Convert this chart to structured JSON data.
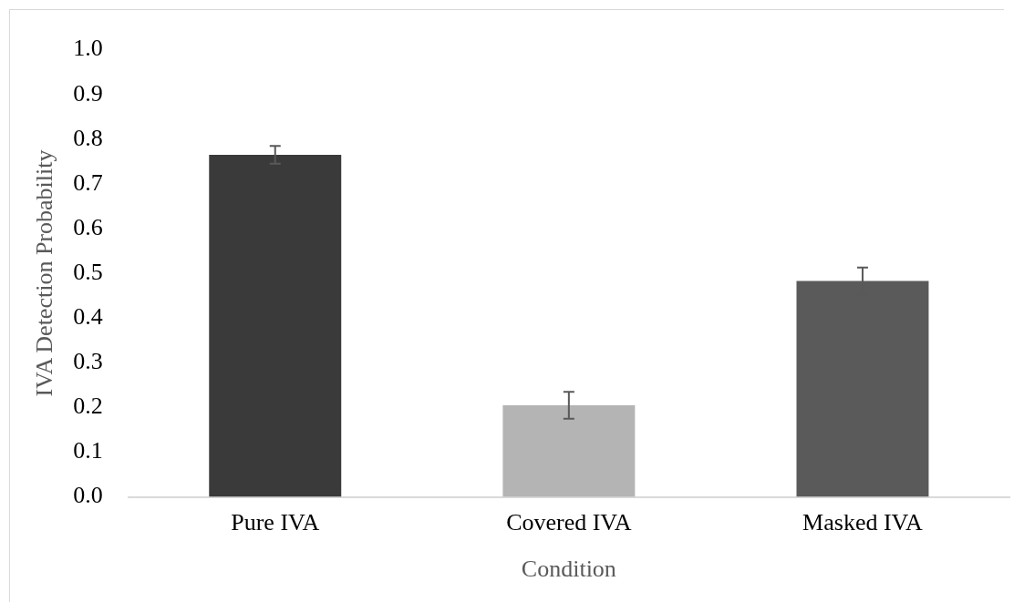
{
  "chart_data": {
    "type": "bar",
    "xlabel": "Condition",
    "ylabel": "IVA Detection Probability",
    "categories": [
      "Pure IVA",
      "Covered IVA",
      "Masked IVA"
    ],
    "values": [
      0.765,
      0.205,
      0.483
    ],
    "errors": [
      0.02,
      0.03,
      0.03
    ],
    "colors": [
      "#3a3a3a",
      "#b4b4b4",
      "#5a5a5a"
    ],
    "ylim": [
      0,
      1
    ],
    "yticks": [
      {
        "value": 0,
        "label": "0.0"
      },
      {
        "value": 0.1,
        "label": "0.1"
      },
      {
        "value": 0.2,
        "label": "0.2"
      },
      {
        "value": 0.3,
        "label": "0.3"
      },
      {
        "value": 0.4,
        "label": "0.4"
      },
      {
        "value": 0.5,
        "label": "0.5"
      },
      {
        "value": 0.6,
        "label": "0.6"
      },
      {
        "value": 0.7,
        "label": "0.7"
      },
      {
        "value": 0.8,
        "label": "0.8"
      },
      {
        "value": 0.9,
        "label": "0.9"
      },
      {
        "value": 1,
        "label": "1.0"
      }
    ],
    "grid": false,
    "legend": false
  }
}
